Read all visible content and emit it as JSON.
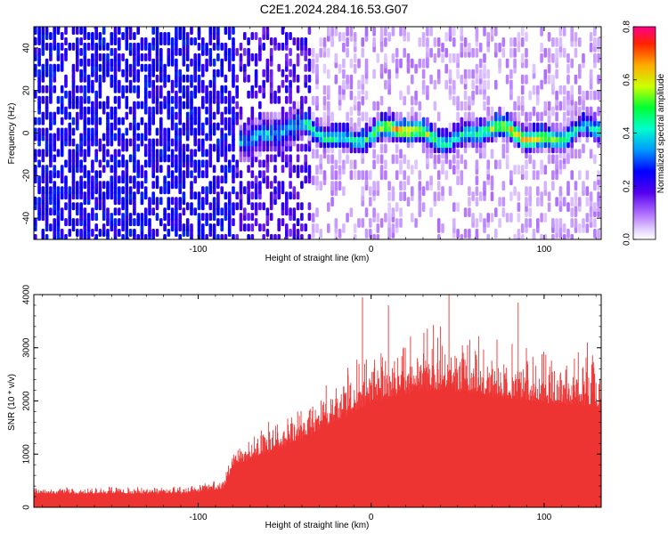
{
  "title": "C2E1.2024.284.16.53.G07",
  "chart_data": [
    {
      "type": "heatmap",
      "xlabel": "Height of straight line (km)",
      "ylabel": "Frequency (Hz)",
      "xlim": [
        -195,
        133
      ],
      "ylim": [
        -50,
        50
      ],
      "xticks": [
        -100,
        0,
        100
      ],
      "yticks": [
        -40,
        -20,
        0,
        20,
        40
      ],
      "colorbar": {
        "label": "Normalized spectral amplitude",
        "range": [
          0,
          0.8
        ],
        "ticks": [
          "0.0",
          "0.2",
          "0.4",
          "0.6",
          "0.8"
        ]
      },
      "signal_band": {
        "center_hz": 0,
        "onset_km": -80
      },
      "noise_edge_km": -35
    },
    {
      "type": "area",
      "xlabel": "Height of straight line (km)",
      "ylabel": "SNR (10 * v/v)",
      "xlim": [
        -195,
        133
      ],
      "ylim": [
        0,
        4000
      ],
      "xticks": [
        -100,
        0,
        100
      ],
      "yticks": [
        0,
        1000,
        2000,
        3000,
        4000
      ],
      "color": "#ee3333",
      "envelope": {
        "x": [
          -195,
          -140,
          -110,
          -85,
          -80,
          -60,
          -40,
          -20,
          0,
          20,
          40,
          60,
          80,
          100,
          133
        ],
        "y": [
          300,
          300,
          300,
          400,
          900,
          1200,
          1500,
          1900,
          2300,
          2500,
          2600,
          2500,
          2400,
          2300,
          2200
        ]
      },
      "peaks": [
        {
          "x": -5,
          "y": 3950
        },
        {
          "x": 10,
          "y": 3800
        },
        {
          "x": 40,
          "y": 3400
        },
        {
          "x": 45,
          "y": 4000
        },
        {
          "x": 85,
          "y": 3850
        },
        {
          "x": 125,
          "y": 3100
        }
      ]
    }
  ]
}
